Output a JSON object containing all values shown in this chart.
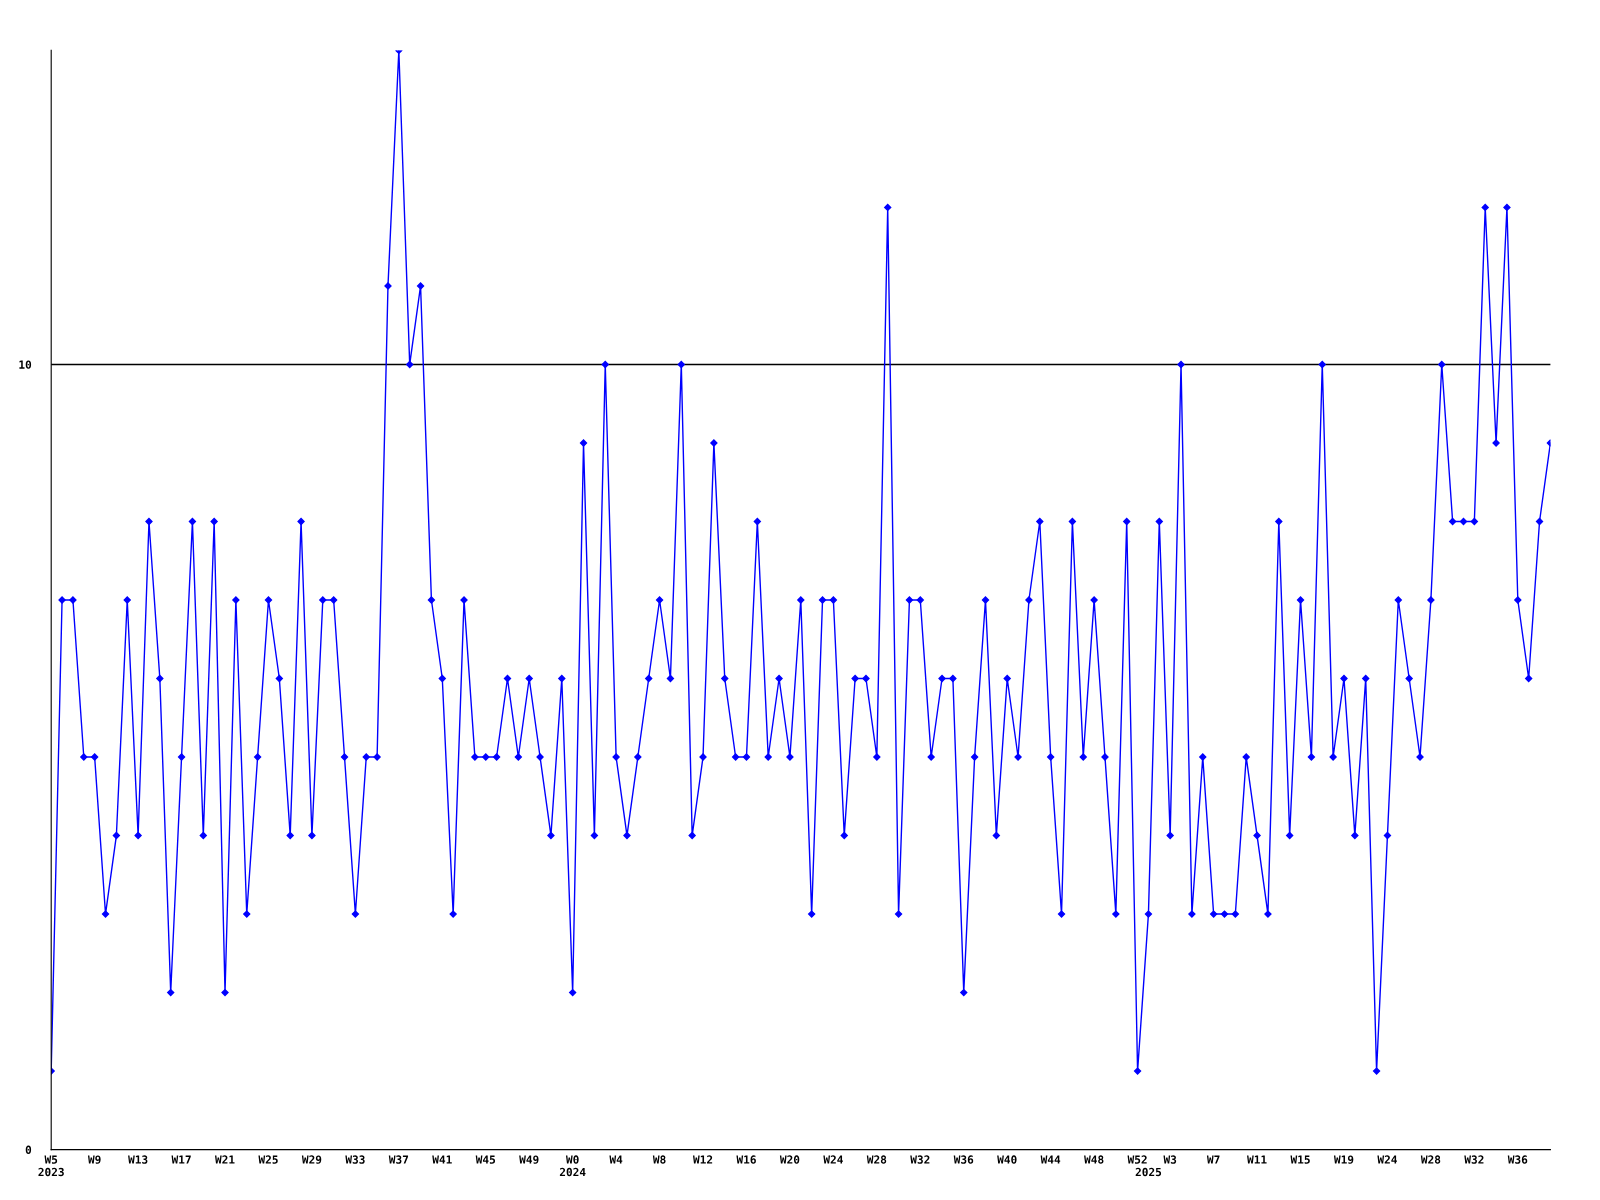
{
  "chart_data": {
    "type": "line",
    "categories": [
      "W5\n2023",
      null,
      null,
      null,
      "W9",
      null,
      null,
      null,
      "W13",
      null,
      null,
      null,
      "W17",
      null,
      null,
      null,
      "W21",
      null,
      null,
      null,
      "W25",
      null,
      null,
      null,
      "W29",
      null,
      null,
      null,
      "W33",
      null,
      null,
      null,
      "W37",
      null,
      null,
      null,
      "W41",
      null,
      null,
      null,
      "W45",
      null,
      null,
      null,
      "W49",
      null,
      null,
      null,
      "W0\n2024",
      null,
      null,
      null,
      "W4",
      null,
      null,
      null,
      "W8",
      null,
      null,
      null,
      "W12",
      null,
      null,
      null,
      "W16",
      null,
      null,
      null,
      "W20",
      null,
      null,
      null,
      "W24",
      null,
      null,
      null,
      "W28",
      null,
      null,
      null,
      "W32",
      null,
      null,
      null,
      "W36",
      null,
      null,
      null,
      "W40",
      null,
      null,
      null,
      "W44",
      null,
      null,
      null,
      "W48",
      null,
      null,
      null,
      "W52",
      "\n2025",
      null,
      "W3",
      null,
      null,
      null,
      "W7",
      null,
      null,
      null,
      "W11",
      null,
      null,
      null,
      "W15",
      null,
      null,
      null,
      "W19",
      null,
      null,
      null,
      "W24",
      null,
      null,
      null,
      "W28",
      null,
      null,
      null,
      "W32",
      null,
      null,
      null,
      "W36",
      null,
      null,
      null
    ],
    "series": [
      {
        "color": "#0000ff",
        "values": [
          1,
          7,
          7,
          5,
          5,
          3,
          4,
          7,
          4,
          8,
          6,
          2,
          5,
          8,
          4,
          8,
          2,
          7,
          3,
          5,
          7,
          6,
          4,
          8,
          4,
          7,
          7,
          5,
          3,
          5,
          5,
          11,
          14,
          10,
          11,
          7,
          6,
          3,
          7,
          5,
          5,
          5,
          6,
          5,
          6,
          5,
          4,
          6,
          2,
          9,
          4,
          10,
          5,
          4,
          5,
          6,
          7,
          6,
          10,
          4,
          5,
          9,
          6,
          5,
          5,
          8,
          5,
          6,
          5,
          7,
          3,
          7,
          7,
          4,
          6,
          6,
          5,
          12,
          3,
          7,
          7,
          5,
          6,
          6,
          2,
          5,
          7,
          4,
          6,
          5,
          7,
          8,
          5,
          3,
          8,
          5,
          7,
          5,
          3,
          8,
          1,
          3,
          8,
          4,
          10,
          3,
          5,
          3,
          3,
          3,
          5,
          4,
          3,
          8,
          4,
          7,
          5,
          10,
          5,
          6,
          4,
          6,
          1,
          4,
          7,
          6,
          5,
          7,
          10,
          8,
          8,
          8,
          12,
          9,
          12,
          7,
          6,
          8,
          9
        ]
      }
    ],
    "ylim": [
      0,
      14
    ],
    "yticks": [
      0,
      10
    ],
    "grid": "y",
    "marker": "diamond",
    "line_style": "solid"
  }
}
